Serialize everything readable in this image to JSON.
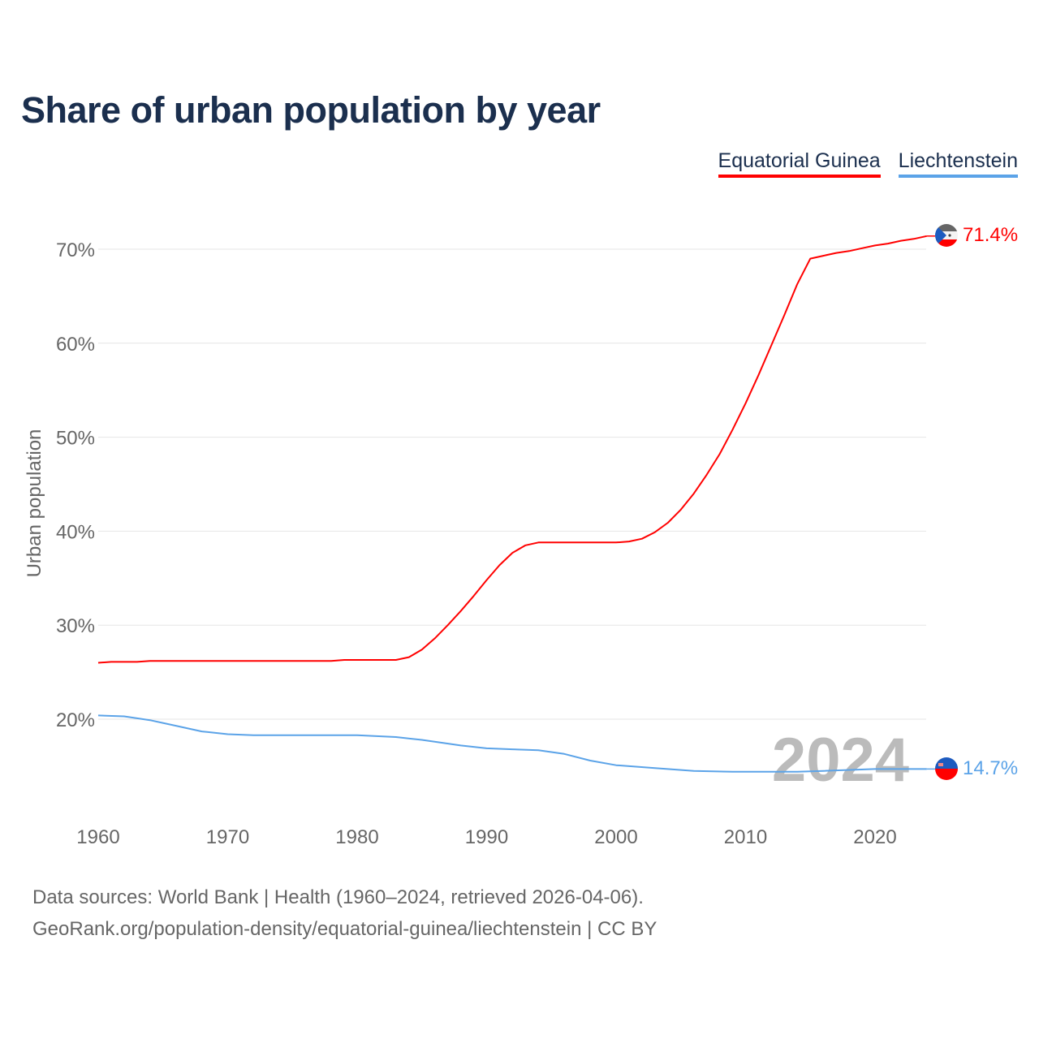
{
  "chart_data": {
    "type": "line",
    "title": "Share of urban population by year",
    "xlabel": "",
    "ylabel": "Urban population",
    "xlim": [
      1960,
      2024
    ],
    "ylim": [
      10,
      75
    ],
    "x_ticks": [
      1960,
      1970,
      1980,
      1990,
      2000,
      2010,
      2020
    ],
    "x_tick_labels": [
      "1960",
      "1970",
      "1980",
      "1990",
      "2000",
      "2010",
      "2020"
    ],
    "y_ticks": [
      20,
      30,
      40,
      50,
      60,
      70
    ],
    "y_tick_labels": [
      "20%",
      "30%",
      "40%",
      "50%",
      "60%",
      "70%"
    ],
    "grid": true,
    "legend_position": "top-right",
    "year_watermark": "2024",
    "series": [
      {
        "name": "Equatorial Guinea",
        "color": "#ff0000",
        "end_label": "71.4%",
        "x": [
          1960,
          1961,
          1962,
          1963,
          1964,
          1970,
          1978,
          1979,
          1983,
          1984,
          1985,
          1986,
          1987,
          1988,
          1989,
          1990,
          1991,
          1992,
          1993,
          1994,
          2000,
          2001,
          2002,
          2003,
          2004,
          2005,
          2006,
          2007,
          2008,
          2009,
          2010,
          2011,
          2012,
          2013,
          2014,
          2015,
          2016,
          2017,
          2018,
          2019,
          2020,
          2021,
          2022,
          2023,
          2024
        ],
        "values": [
          26.0,
          26.1,
          26.1,
          26.1,
          26.2,
          26.2,
          26.2,
          26.3,
          26.3,
          26.6,
          27.4,
          28.6,
          30.0,
          31.5,
          33.1,
          34.8,
          36.4,
          37.7,
          38.5,
          38.8,
          38.8,
          38.9,
          39.2,
          39.9,
          40.9,
          42.3,
          44.0,
          46.0,
          48.2,
          50.8,
          53.6,
          56.6,
          59.8,
          63.0,
          66.3,
          69.0,
          69.3,
          69.6,
          69.8,
          70.1,
          70.4,
          70.6,
          70.9,
          71.1,
          71.4
        ]
      },
      {
        "name": "Liechtenstein",
        "color": "#5ba3e8",
        "end_label": "14.7%",
        "x": [
          1960,
          1962,
          1964,
          1966,
          1968,
          1970,
          1972,
          1980,
          1983,
          1985,
          1988,
          1990,
          1992,
          1994,
          1996,
          1998,
          2000,
          2003,
          2006,
          2009,
          2014,
          2016,
          2020,
          2024
        ],
        "values": [
          20.4,
          20.3,
          19.9,
          19.3,
          18.7,
          18.4,
          18.3,
          18.3,
          18.1,
          17.8,
          17.2,
          16.9,
          16.8,
          16.7,
          16.3,
          15.6,
          15.1,
          14.8,
          14.5,
          14.4,
          14.4,
          14.5,
          14.7,
          14.7
        ]
      }
    ]
  },
  "footer": {
    "line1": "Data sources: World Bank | Health (1960–2024, retrieved 2026-04-06).",
    "line2": "GeoRank.org/population-density/equatorial-guinea/liechtenstein | CC BY"
  }
}
